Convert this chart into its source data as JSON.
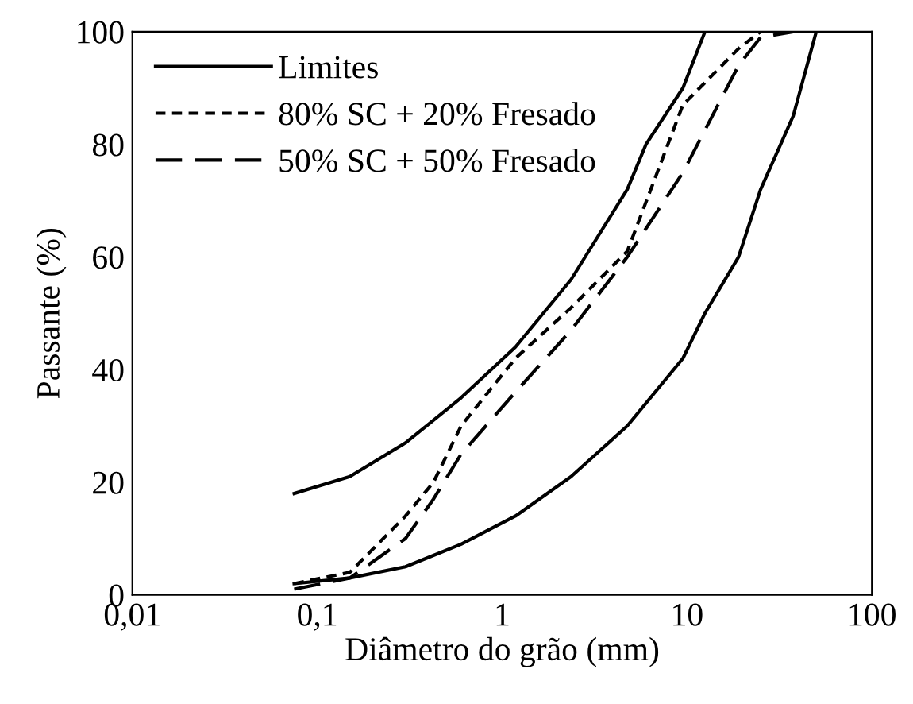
{
  "chart_data": {
    "type": "line",
    "xlabel": "Diâmetro do grão (mm)",
    "ylabel": "Passante (%)",
    "log": "x",
    "xlim": [
      0.01,
      100
    ],
    "xticks": [
      {
        "value": 0.01,
        "label": "0,01"
      },
      {
        "value": 0.1,
        "label": "0,1"
      },
      1,
      10,
      100
    ],
    "ylim": [
      0,
      100
    ],
    "yticks": [
      0,
      20,
      40,
      60,
      80,
      100
    ],
    "grid": false,
    "legend": "top left",
    "marker": "none",
    "series": [
      {
        "name": "Limites",
        "color": "#000000",
        "line_style": "solid",
        "x": [
          0.075,
          0.15,
          0.3,
          0.425,
          0.6,
          1.18,
          2.36,
          4.75,
          6,
          9.5,
          12.5
        ],
        "values": [
          18,
          21,
          27,
          31,
          35,
          44,
          56,
          72,
          80,
          90,
          100
        ]
      },
      {
        "color": "#000000",
        "line_style": "solid",
        "x": [
          0.075,
          0.15,
          0.3,
          0.425,
          0.6,
          1.18,
          2.36,
          4.75,
          9.5,
          12.5,
          19,
          25,
          37.5,
          50
        ],
        "values": [
          2,
          3,
          5,
          7,
          9,
          14,
          21,
          30,
          42,
          50,
          60,
          72,
          85,
          100
        ]
      },
      {
        "name": "80% SC + 20% Fresado",
        "color": "#000000",
        "line_style": "dotted",
        "x": [
          0.075,
          0.15,
          0.3,
          0.425,
          0.6,
          1.18,
          2.36,
          4.75,
          9.5,
          19,
          25
        ],
        "values": [
          2,
          4,
          14,
          20,
          30,
          42,
          51,
          61,
          87,
          97,
          100
        ]
      },
      {
        "name": "50% SC + 50% Fresado",
        "color": "#000000",
        "line_style": "dashed",
        "x": [
          0.075,
          0.15,
          0.3,
          0.425,
          0.6,
          1.18,
          2.36,
          4.75,
          9.5,
          19,
          25,
          37.5
        ],
        "values": [
          1,
          3,
          10,
          17,
          25,
          36,
          47,
          60,
          75,
          94,
          99,
          100
        ]
      }
    ]
  }
}
